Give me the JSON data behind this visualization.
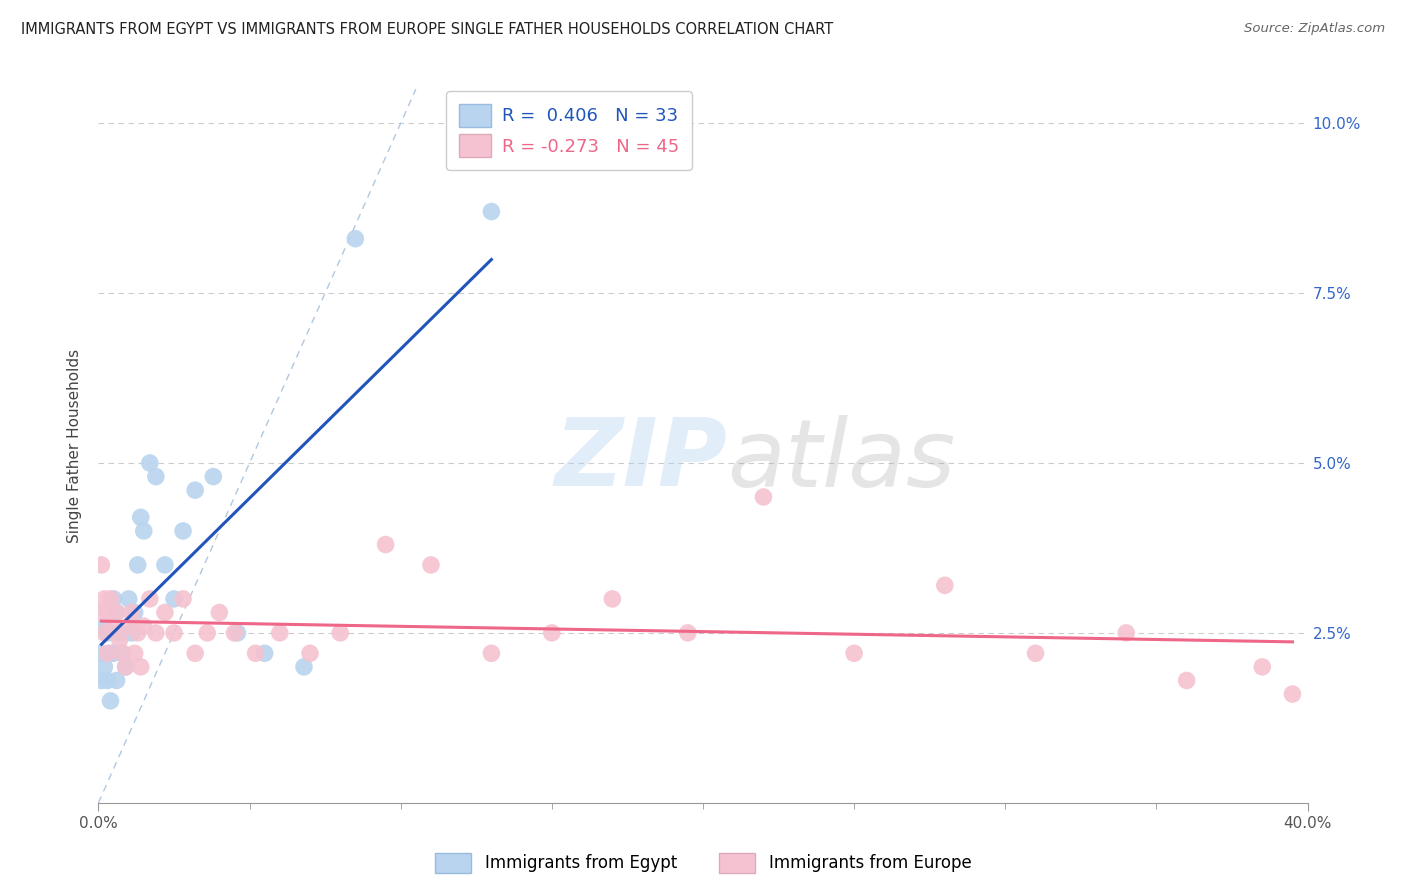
{
  "title": "IMMIGRANTS FROM EGYPT VS IMMIGRANTS FROM EUROPE SINGLE FATHER HOUSEHOLDS CORRELATION CHART",
  "source": "Source: ZipAtlas.com",
  "ylabel": "Single Father Households",
  "color_egypt": "#b8d4ee",
  "color_europe": "#f4c2d0",
  "line_color_egypt": "#2255bb",
  "line_color_europe": "#ee6688",
  "diag_line_color": "#b0c8e0",
  "watermark_zip": "ZIP",
  "watermark_atlas": "atlas",
  "xlim": [
    0.0,
    0.4
  ],
  "ylim": [
    0.0,
    0.105
  ],
  "ytick_vals": [
    0.0,
    0.025,
    0.05,
    0.075,
    0.1
  ],
  "ytick_labels": [
    "",
    "2.5%",
    "5.0%",
    "7.5%",
    "10.0%"
  ],
  "egypt_x": [
    0.001,
    0.001,
    0.002,
    0.002,
    0.003,
    0.003,
    0.004,
    0.004,
    0.005,
    0.005,
    0.006,
    0.006,
    0.007,
    0.008,
    0.009,
    0.01,
    0.011,
    0.012,
    0.013,
    0.014,
    0.015,
    0.017,
    0.019,
    0.022,
    0.025,
    0.028,
    0.032,
    0.038,
    0.046,
    0.055,
    0.068,
    0.085,
    0.13
  ],
  "egypt_y": [
    0.022,
    0.018,
    0.026,
    0.02,
    0.025,
    0.018,
    0.022,
    0.015,
    0.03,
    0.022,
    0.028,
    0.018,
    0.025,
    0.022,
    0.02,
    0.03,
    0.025,
    0.028,
    0.035,
    0.042,
    0.04,
    0.05,
    0.048,
    0.035,
    0.03,
    0.04,
    0.046,
    0.048,
    0.025,
    0.022,
    0.02,
    0.083,
    0.087
  ],
  "europe_x": [
    0.001,
    0.001,
    0.002,
    0.002,
    0.003,
    0.003,
    0.004,
    0.005,
    0.006,
    0.007,
    0.008,
    0.009,
    0.01,
    0.011,
    0.012,
    0.013,
    0.014,
    0.015,
    0.017,
    0.019,
    0.022,
    0.025,
    0.028,
    0.032,
    0.036,
    0.04,
    0.045,
    0.052,
    0.06,
    0.07,
    0.08,
    0.095,
    0.11,
    0.13,
    0.15,
    0.17,
    0.195,
    0.22,
    0.25,
    0.28,
    0.31,
    0.34,
    0.36,
    0.385,
    0.395
  ],
  "europe_y": [
    0.035,
    0.028,
    0.03,
    0.025,
    0.028,
    0.022,
    0.03,
    0.026,
    0.028,
    0.024,
    0.022,
    0.02,
    0.026,
    0.028,
    0.022,
    0.025,
    0.02,
    0.026,
    0.03,
    0.025,
    0.028,
    0.025,
    0.03,
    0.022,
    0.025,
    0.028,
    0.025,
    0.022,
    0.025,
    0.022,
    0.025,
    0.038,
    0.035,
    0.022,
    0.025,
    0.03,
    0.025,
    0.045,
    0.022,
    0.032,
    0.022,
    0.025,
    0.018,
    0.02,
    0.016
  ]
}
